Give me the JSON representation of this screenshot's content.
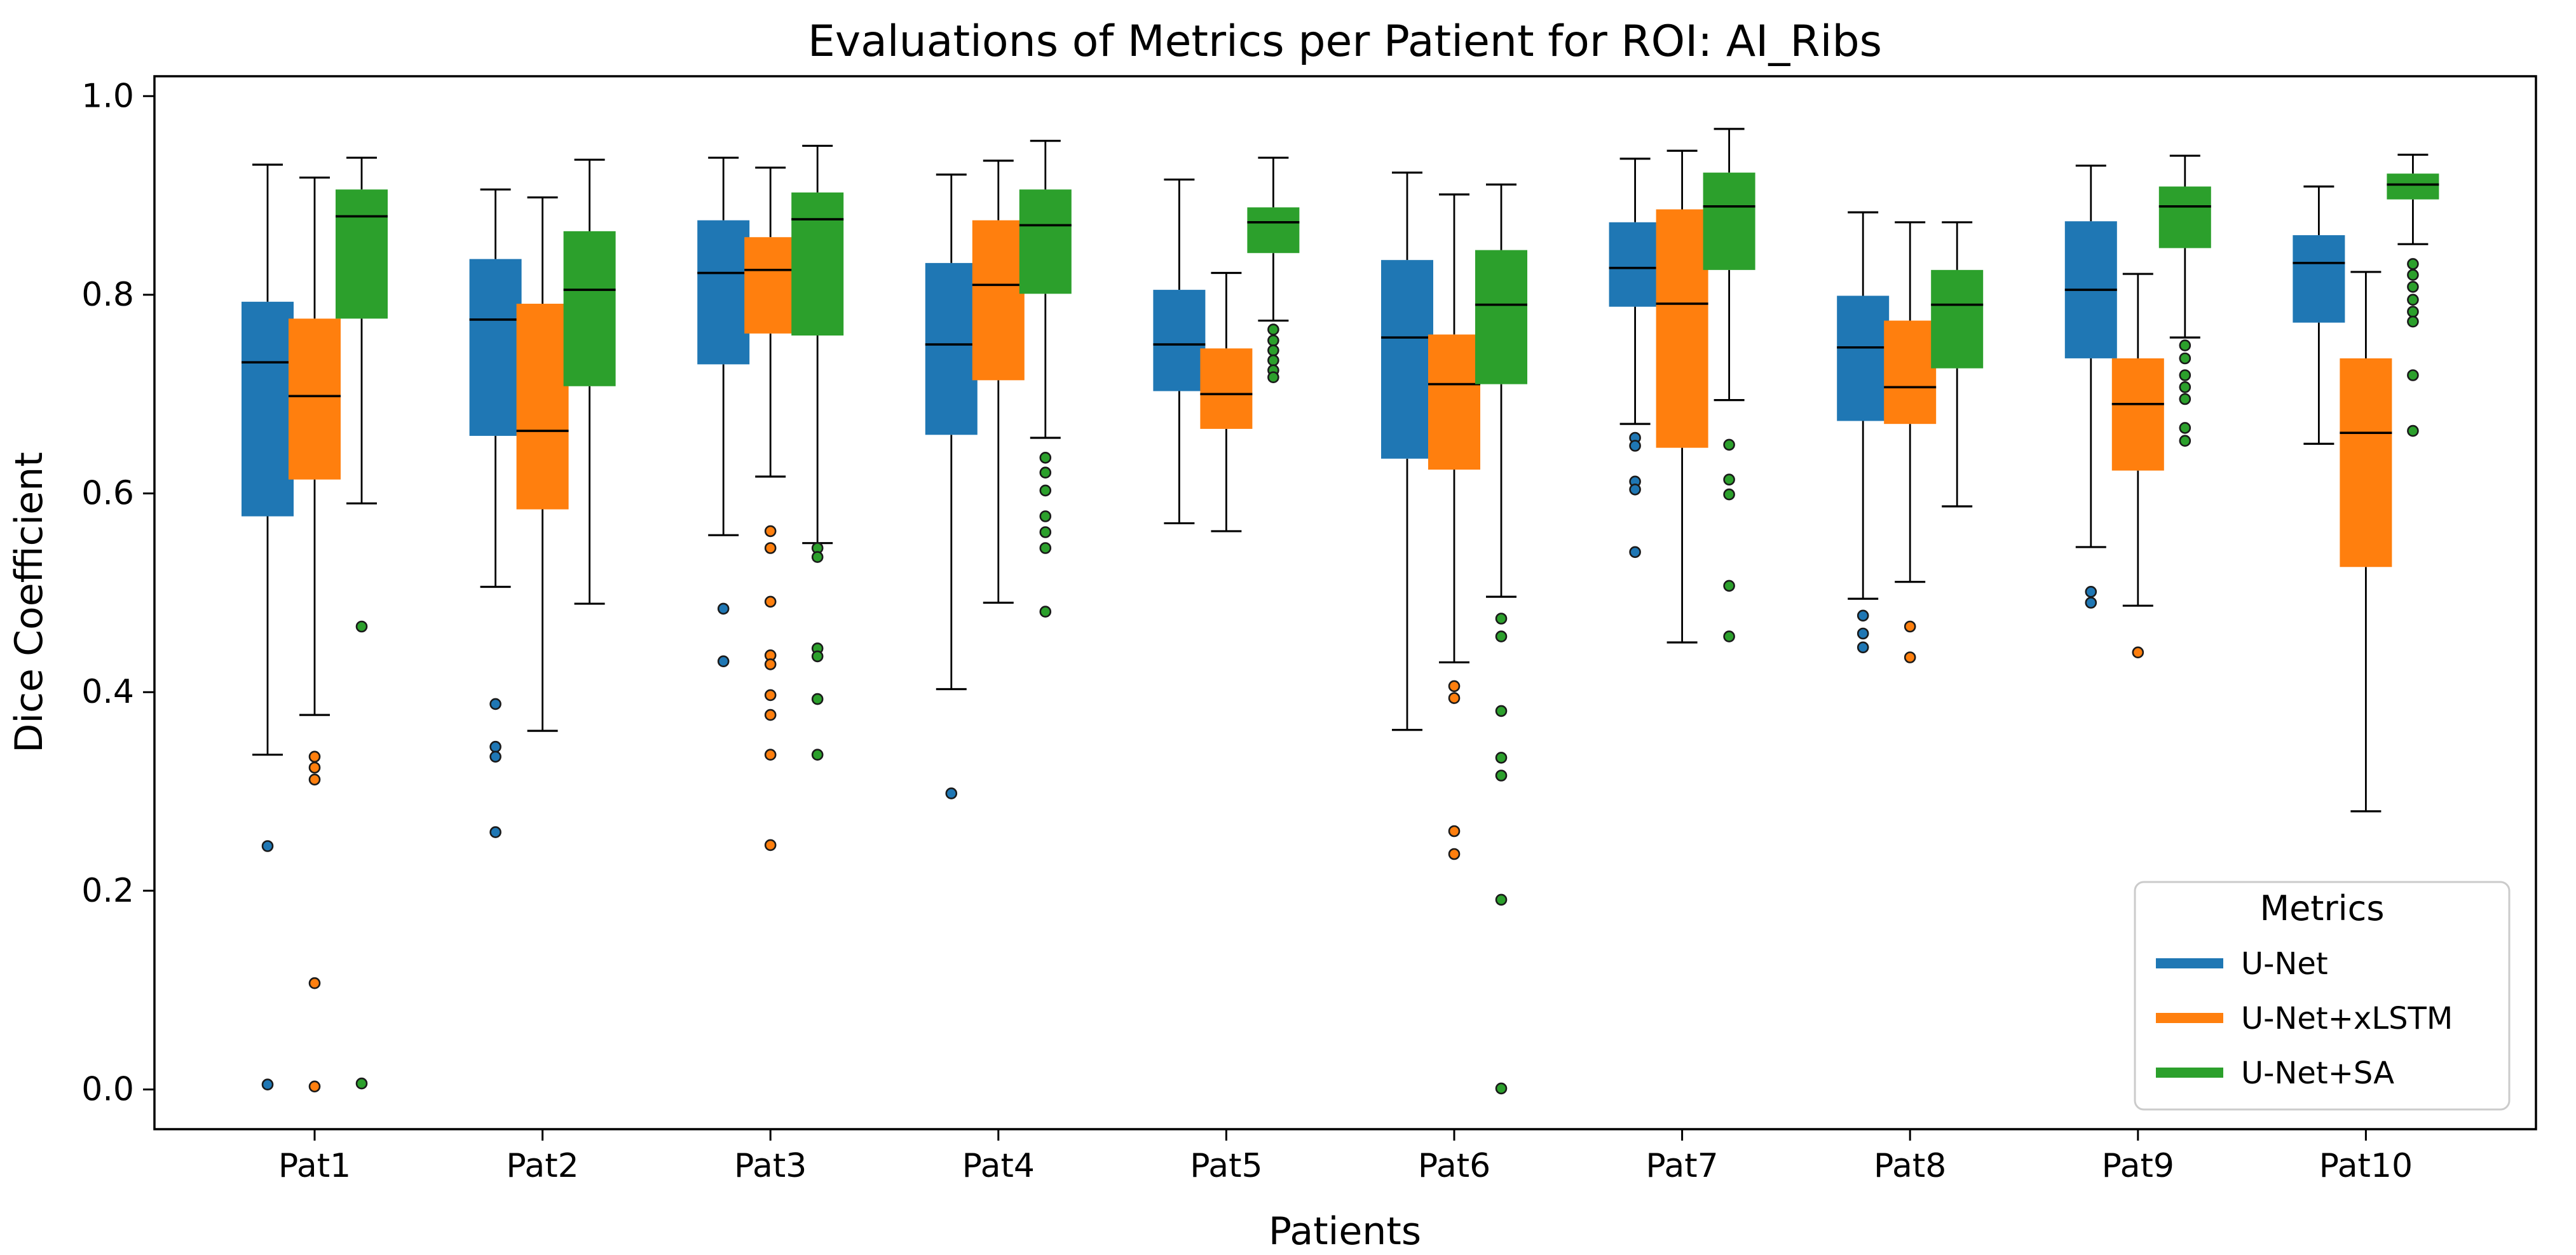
{
  "figure": {
    "background": "#ffffff"
  },
  "chart_data": {
    "type": "boxplot",
    "title": "Evaluations of Metrics per Patient for ROI: AI_Ribs",
    "xlabel": "Patients",
    "ylabel": "Dice Coefficient",
    "grid": false,
    "ylim": [
      -0.04,
      1.02
    ],
    "yticks": [
      {
        "v": 0.0,
        "label": "0.0"
      },
      {
        "v": 0.2,
        "label": "0.2"
      },
      {
        "v": 0.4,
        "label": "0.4"
      },
      {
        "v": 0.6,
        "label": "0.6"
      },
      {
        "v": 0.8,
        "label": "0.8"
      },
      {
        "v": 1.0,
        "label": "1.0"
      }
    ],
    "categories": [
      "Pat1",
      "Pat2",
      "Pat3",
      "Pat4",
      "Pat5",
      "Pat6",
      "Pat7",
      "Pat8",
      "Pat9",
      "Pat10"
    ],
    "legend": {
      "title": "Metrics",
      "position": "lower right",
      "entries": [
        {
          "label": "U-Net",
          "color": "#1f77b4"
        },
        {
          "label": "U-Net+xLSTM",
          "color": "#ff7f0e"
        },
        {
          "label": "U-Net+SA",
          "color": "#2ca02c"
        }
      ]
    },
    "series": [
      {
        "name": "U-Net",
        "color": "#1f77b4",
        "boxes": [
          {
            "whislo": 0.337,
            "q1": 0.577,
            "med": 0.732,
            "q3": 0.793,
            "whishi": 0.931,
            "fliers": [
              0.245,
              0.005
            ]
          },
          {
            "whislo": 0.506,
            "q1": 0.658,
            "med": 0.775,
            "q3": 0.836,
            "whishi": 0.906,
            "fliers": [
              0.388,
              0.345,
              0.335,
              0.259
            ]
          },
          {
            "whislo": 0.558,
            "q1": 0.73,
            "med": 0.822,
            "q3": 0.875,
            "whishi": 0.938,
            "fliers": [
              0.484,
              0.431
            ]
          },
          {
            "whislo": 0.403,
            "q1": 0.659,
            "med": 0.75,
            "q3": 0.832,
            "whishi": 0.921,
            "fliers": [
              0.298
            ]
          },
          {
            "whislo": 0.57,
            "q1": 0.703,
            "med": 0.75,
            "q3": 0.805,
            "whishi": 0.916,
            "fliers": []
          },
          {
            "whislo": 0.362,
            "q1": 0.635,
            "med": 0.757,
            "q3": 0.835,
            "whishi": 0.923,
            "fliers": []
          },
          {
            "whislo": 0.67,
            "q1": 0.788,
            "med": 0.827,
            "q3": 0.873,
            "whishi": 0.937,
            "fliers": [
              0.656,
              0.648,
              0.612,
              0.604,
              0.541
            ]
          },
          {
            "whislo": 0.494,
            "q1": 0.673,
            "med": 0.747,
            "q3": 0.799,
            "whishi": 0.883,
            "fliers": [
              0.477,
              0.459,
              0.445
            ]
          },
          {
            "whislo": 0.546,
            "q1": 0.736,
            "med": 0.805,
            "q3": 0.874,
            "whishi": 0.93,
            "fliers": [
              0.501,
              0.49
            ]
          },
          {
            "whislo": 0.65,
            "q1": 0.772,
            "med": 0.832,
            "q3": 0.86,
            "whishi": 0.909,
            "fliers": []
          }
        ]
      },
      {
        "name": "U-Net+xLSTM",
        "color": "#ff7f0e",
        "boxes": [
          {
            "whislo": 0.377,
            "q1": 0.614,
            "med": 0.698,
            "q3": 0.776,
            "whishi": 0.918,
            "fliers": [
              0.335,
              0.324,
              0.312,
              0.107,
              0.003
            ]
          },
          {
            "whislo": 0.361,
            "q1": 0.584,
            "med": 0.663,
            "q3": 0.791,
            "whishi": 0.898,
            "fliers": []
          },
          {
            "whislo": 0.617,
            "q1": 0.761,
            "med": 0.825,
            "q3": 0.858,
            "whishi": 0.928,
            "fliers": [
              0.562,
              0.545,
              0.491,
              0.437,
              0.428,
              0.397,
              0.377,
              0.337,
              0.246
            ]
          },
          {
            "whislo": 0.49,
            "q1": 0.714,
            "med": 0.81,
            "q3": 0.875,
            "whishi": 0.935,
            "fliers": []
          },
          {
            "whislo": 0.562,
            "q1": 0.665,
            "med": 0.7,
            "q3": 0.746,
            "whishi": 0.822,
            "fliers": []
          },
          {
            "whislo": 0.43,
            "q1": 0.624,
            "med": 0.71,
            "q3": 0.76,
            "whishi": 0.901,
            "fliers": [
              0.406,
              0.394,
              0.26,
              0.237
            ]
          },
          {
            "whislo": 0.45,
            "q1": 0.646,
            "med": 0.791,
            "q3": 0.886,
            "whishi": 0.945,
            "fliers": []
          },
          {
            "whislo": 0.511,
            "q1": 0.67,
            "med": 0.707,
            "q3": 0.774,
            "whishi": 0.873,
            "fliers": [
              0.466,
              0.435
            ]
          },
          {
            "whislo": 0.487,
            "q1": 0.623,
            "med": 0.69,
            "q3": 0.736,
            "whishi": 0.821,
            "fliers": [
              0.44
            ]
          },
          {
            "whislo": 0.28,
            "q1": 0.526,
            "med": 0.661,
            "q3": 0.736,
            "whishi": 0.823,
            "fliers": []
          }
        ]
      },
      {
        "name": "U-Net+SA",
        "color": "#2ca02c",
        "boxes": [
          {
            "whislo": 0.59,
            "q1": 0.776,
            "med": 0.879,
            "q3": 0.906,
            "whishi": 0.938,
            "fliers": [
              0.466,
              0.006
            ]
          },
          {
            "whislo": 0.489,
            "q1": 0.708,
            "med": 0.805,
            "q3": 0.864,
            "whishi": 0.936,
            "fliers": []
          },
          {
            "whislo": 0.55,
            "q1": 0.759,
            "med": 0.876,
            "q3": 0.903,
            "whishi": 0.95,
            "fliers": [
              0.545,
              0.536,
              0.444,
              0.436,
              0.393,
              0.337
            ]
          },
          {
            "whislo": 0.656,
            "q1": 0.801,
            "med": 0.87,
            "q3": 0.906,
            "whishi": 0.955,
            "fliers": [
              0.636,
              0.621,
              0.603,
              0.577,
              0.561,
              0.545,
              0.481
            ]
          },
          {
            "whislo": 0.774,
            "q1": 0.842,
            "med": 0.873,
            "q3": 0.888,
            "whishi": 0.938,
            "fliers": [
              0.765,
              0.754,
              0.744,
              0.734,
              0.724,
              0.717
            ]
          },
          {
            "whislo": 0.496,
            "q1": 0.71,
            "med": 0.79,
            "q3": 0.845,
            "whishi": 0.911,
            "fliers": [
              0.474,
              0.456,
              0.381,
              0.334,
              0.316,
              0.191,
              0.001
            ]
          },
          {
            "whislo": 0.694,
            "q1": 0.825,
            "med": 0.889,
            "q3": 0.923,
            "whishi": 0.967,
            "fliers": [
              0.649,
              0.614,
              0.599,
              0.507,
              0.456
            ]
          },
          {
            "whislo": 0.587,
            "q1": 0.726,
            "med": 0.79,
            "q3": 0.825,
            "whishi": 0.873,
            "fliers": []
          },
          {
            "whislo": 0.757,
            "q1": 0.847,
            "med": 0.889,
            "q3": 0.909,
            "whishi": 0.94,
            "fliers": [
              0.749,
              0.736,
              0.719,
              0.707,
              0.695,
              0.666,
              0.653
            ]
          },
          {
            "whislo": 0.851,
            "q1": 0.896,
            "med": 0.911,
            "q3": 0.922,
            "whishi": 0.941,
            "fliers": [
              0.831,
              0.82,
              0.808,
              0.795,
              0.783,
              0.773,
              0.719,
              0.663
            ]
          }
        ]
      }
    ]
  }
}
